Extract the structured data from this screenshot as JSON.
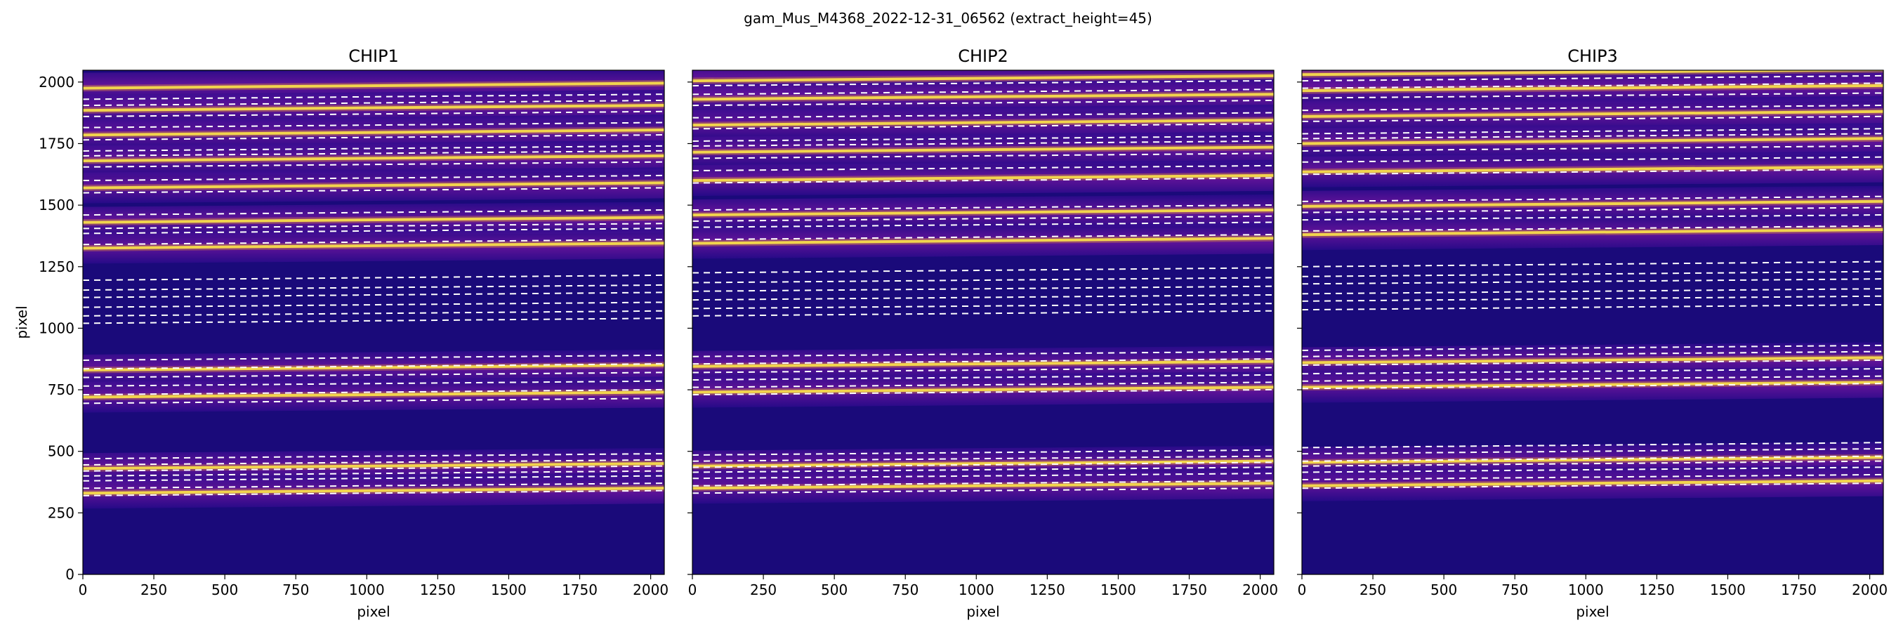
{
  "figure": {
    "suptitle": "gam_Mus_M4368_2022-12-31_06562  (extract_height=45)"
  },
  "chart_data": [
    {
      "type": "heatmap",
      "title": "CHIP1",
      "xlabel": "pixel",
      "ylabel": "pixel",
      "xlim": [
        0,
        2048
      ],
      "ylim": [
        0,
        2048
      ],
      "xticks": [
        0,
        250,
        500,
        750,
        1000,
        1250,
        1500,
        1750,
        2000
      ],
      "yticks": [
        0,
        250,
        500,
        750,
        1000,
        1250,
        1500,
        1750,
        2000
      ],
      "colormap": "plasma",
      "bright_traces_y": [
        1975,
        1885,
        1785,
        1680,
        1570,
        1430,
        1325,
        830,
        720,
        430,
        330
      ],
      "trace_slope": 0.01,
      "dashed_lines_y": [
        1930,
        1905,
        1860,
        1815,
        1765,
        1720,
        1700,
        1655,
        1600,
        1550,
        1460,
        1405,
        1385,
        1340,
        1195,
        1155,
        1125,
        1085,
        1050,
        1020,
        870,
        835,
        800,
        765,
        730,
        695,
        470,
        445,
        420,
        400,
        380,
        350,
        320
      ],
      "colors": {
        "dashed_line": "#ffffff",
        "trace": "#fcfd5a"
      }
    },
    {
      "type": "heatmap",
      "title": "CHIP2",
      "xlabel": "pixel",
      "xlim": [
        0,
        2048
      ],
      "ylim": [
        0,
        2048
      ],
      "xticks": [
        0,
        250,
        500,
        750,
        1000,
        1250,
        1500,
        1750,
        2000
      ],
      "colormap": "plasma",
      "bright_traces_y": [
        2005,
        1930,
        1825,
        1715,
        1600,
        1460,
        1345,
        845,
        740,
        440,
        350
      ],
      "trace_slope": 0.01,
      "dashed_lines_y": [
        1985,
        1950,
        1905,
        1855,
        1810,
        1760,
        1740,
        1690,
        1640,
        1590,
        1480,
        1435,
        1410,
        1360,
        1225,
        1185,
        1150,
        1115,
        1080,
        1050,
        885,
        855,
        820,
        790,
        760,
        730,
        485,
        460,
        435,
        415,
        390,
        360,
        330
      ],
      "colors": {
        "dashed_line": "#ffffff",
        "trace": "#fcfd5a"
      }
    },
    {
      "type": "heatmap",
      "title": "CHIP3",
      "xlabel": "pixel",
      "xlim": [
        0,
        2048
      ],
      "ylim": [
        0,
        2048
      ],
      "xticks": [
        0,
        250,
        500,
        750,
        1000,
        1250,
        1500,
        1750,
        2000
      ],
      "colormap": "plasma",
      "bright_traces_y": [
        2030,
        1965,
        1860,
        1750,
        1635,
        1495,
        1380,
        860,
        760,
        455,
        360
      ],
      "trace_slope": 0.01,
      "dashed_lines_y": [
        2005,
        1975,
        1935,
        1885,
        1840,
        1790,
        1770,
        1720,
        1675,
        1625,
        1515,
        1470,
        1440,
        1395,
        1250,
        1210,
        1180,
        1140,
        1110,
        1075,
        910,
        885,
        850,
        815,
        785,
        755,
        515,
        490,
        460,
        440,
        415,
        385,
        350
      ],
      "colors": {
        "dashed_line": "#ffffff",
        "trace": "#fcfd5a"
      }
    }
  ]
}
